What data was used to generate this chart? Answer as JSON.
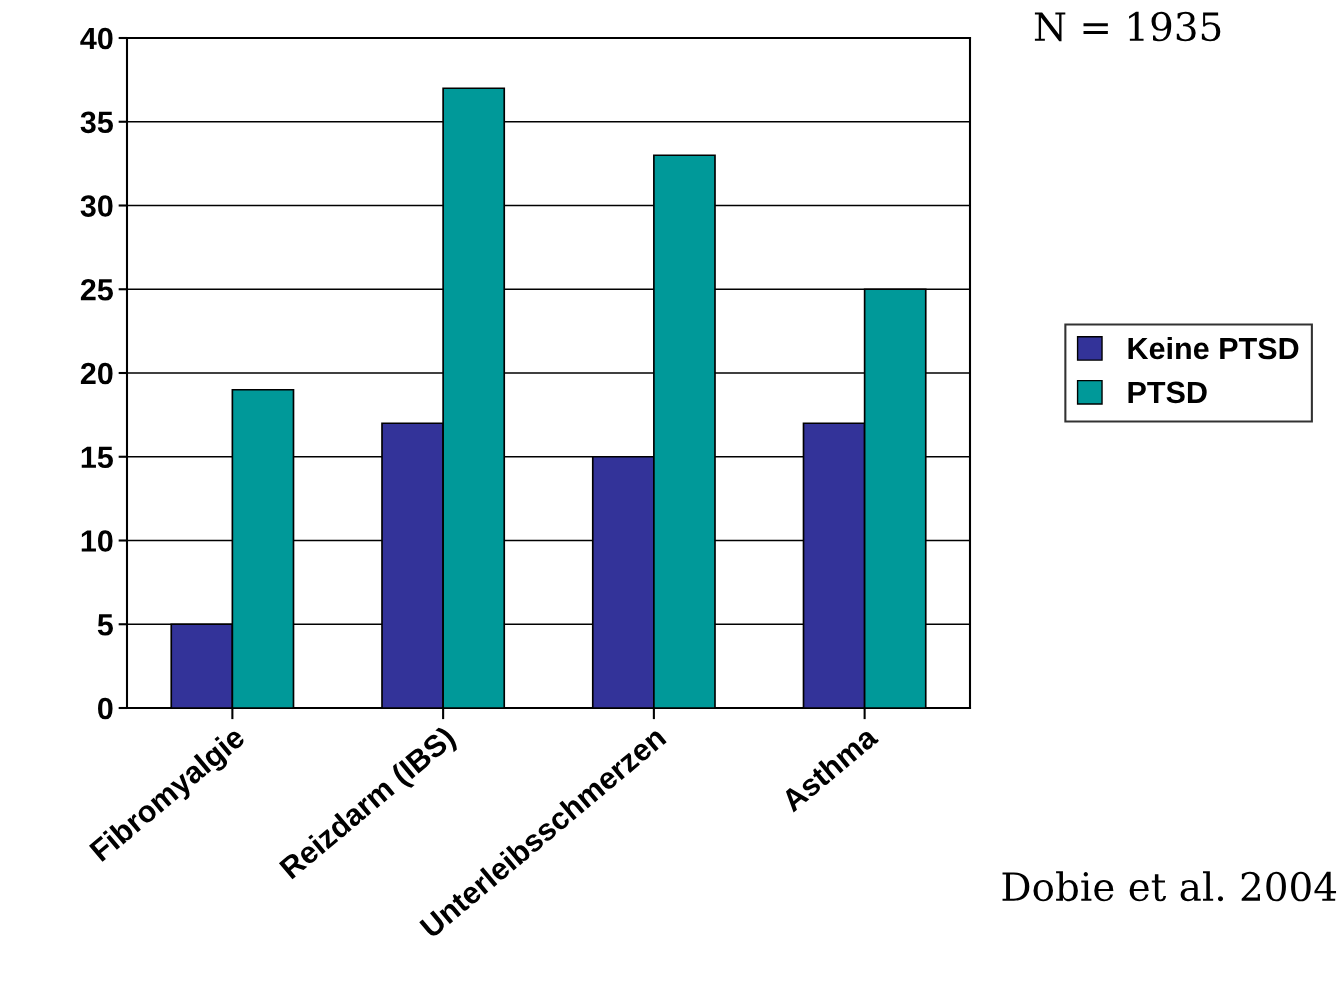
{
  "chart_data": {
    "type": "bar",
    "categories": [
      "Fibromyalgie",
      "Reizdarm (IBS)",
      "Unterleibsschmerzen",
      "Asthma"
    ],
    "series": [
      {
        "name": "Keine PTSD",
        "color": "#333399",
        "values": [
          5,
          17,
          15,
          17
        ]
      },
      {
        "name": "PTSD",
        "color": "#009999",
        "values": [
          19,
          37,
          33,
          25
        ]
      }
    ],
    "ylim": [
      0,
      40
    ],
    "yticks": [
      0,
      5,
      10,
      15,
      20,
      25,
      30,
      35,
      40
    ],
    "grid": "y",
    "legend": "right",
    "annotations": [
      "N = 1935",
      "Dobie et al. 2004"
    ]
  }
}
